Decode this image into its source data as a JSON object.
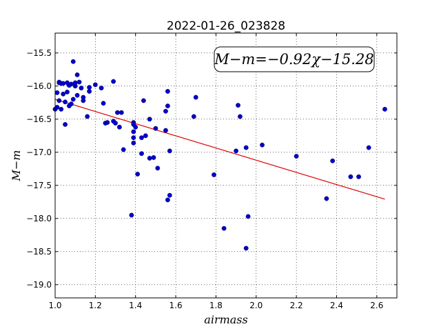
{
  "chart_data": {
    "type": "scatter",
    "title": "2022-01-26_023828",
    "xlabel": "airmass",
    "ylabel": "M−m",
    "annotation": "M−m=−0.92χ−15.28",
    "xlim": [
      1.0,
      2.7
    ],
    "ylim": [
      -15.2,
      -19.2
    ],
    "y_inverted": true,
    "grid": true,
    "xticks": [
      "1.0",
      "1.2",
      "1.4",
      "1.6",
      "1.8",
      "2.0",
      "2.2",
      "2.4",
      "2.6"
    ],
    "yticks": [
      "−15.5",
      "−16.0",
      "−16.5",
      "−17.0",
      "−17.5",
      "−18.0",
      "−18.5",
      "−19.0"
    ],
    "xtick_values": [
      1.0,
      1.2,
      1.4,
      1.6,
      1.8,
      2.0,
      2.2,
      2.4,
      2.6
    ],
    "ytick_values": [
      -15.5,
      -16.0,
      -16.5,
      -17.0,
      -17.5,
      -18.0,
      -18.5,
      -19.0
    ],
    "fit": {
      "slope": -0.92,
      "intercept": -15.28,
      "x_range": [
        1.0,
        2.64
      ],
      "color": "#dd0000"
    },
    "marker_color": "#0000cc",
    "x": [
      1.0,
      1.01,
      1.01,
      1.02,
      1.02,
      1.02,
      1.03,
      1.03,
      1.04,
      1.04,
      1.05,
      1.05,
      1.06,
      1.06,
      1.07,
      1.07,
      1.08,
      1.08,
      1.09,
      1.09,
      1.1,
      1.1,
      1.11,
      1.11,
      1.12,
      1.13,
      1.14,
      1.14,
      1.16,
      1.17,
      1.17,
      1.2,
      1.23,
      1.24,
      1.25,
      1.26,
      1.29,
      1.29,
      1.3,
      1.31,
      1.32,
      1.33,
      1.34,
      1.38,
      1.39,
      1.39,
      1.39,
      1.39,
      1.39,
      1.4,
      1.41,
      1.43,
      1.43,
      1.44,
      1.45,
      1.47,
      1.47,
      1.49,
      1.5,
      1.51,
      1.55,
      1.55,
      1.56,
      1.56,
      1.56,
      1.57,
      1.57,
      1.69,
      1.7,
      1.79,
      1.84,
      1.9,
      1.91,
      1.92,
      1.95,
      1.95,
      1.96,
      2.03,
      2.2,
      2.35,
      2.38,
      2.47,
      2.51,
      2.56,
      2.64
    ],
    "y": [
      -16.35,
      -16.1,
      -16.32,
      -15.95,
      -16.22,
      -15.94,
      -15.96,
      -16.35,
      -16.12,
      -15.96,
      -16.24,
      -16.58,
      -16.09,
      -15.95,
      -16.3,
      -15.99,
      -15.97,
      -16.27,
      -16.2,
      -15.63,
      -16.0,
      -15.95,
      -15.83,
      -16.14,
      -15.94,
      -16.03,
      -16.22,
      -16.17,
      -16.46,
      -16.02,
      -16.08,
      -15.98,
      -16.03,
      -16.26,
      -16.56,
      -16.55,
      -16.53,
      -15.93,
      -16.56,
      -16.4,
      -16.62,
      -16.4,
      -16.96,
      -17.95,
      -16.55,
      -16.58,
      -16.69,
      -16.78,
      -16.86,
      -16.62,
      -17.33,
      -16.78,
      -17.02,
      -16.22,
      -16.75,
      -16.5,
      -17.09,
      -17.08,
      -16.64,
      -17.24,
      -16.67,
      -16.38,
      -16.3,
      -16.08,
      -17.72,
      -16.98,
      -17.65,
      -16.46,
      -16.17,
      -17.34,
      -18.15,
      -16.98,
      -16.29,
      -16.46,
      -18.45,
      -16.93,
      -17.97,
      -16.89,
      -17.06,
      -17.7,
      -17.13,
      -17.37,
      -17.37,
      -16.93,
      -16.35
    ]
  }
}
